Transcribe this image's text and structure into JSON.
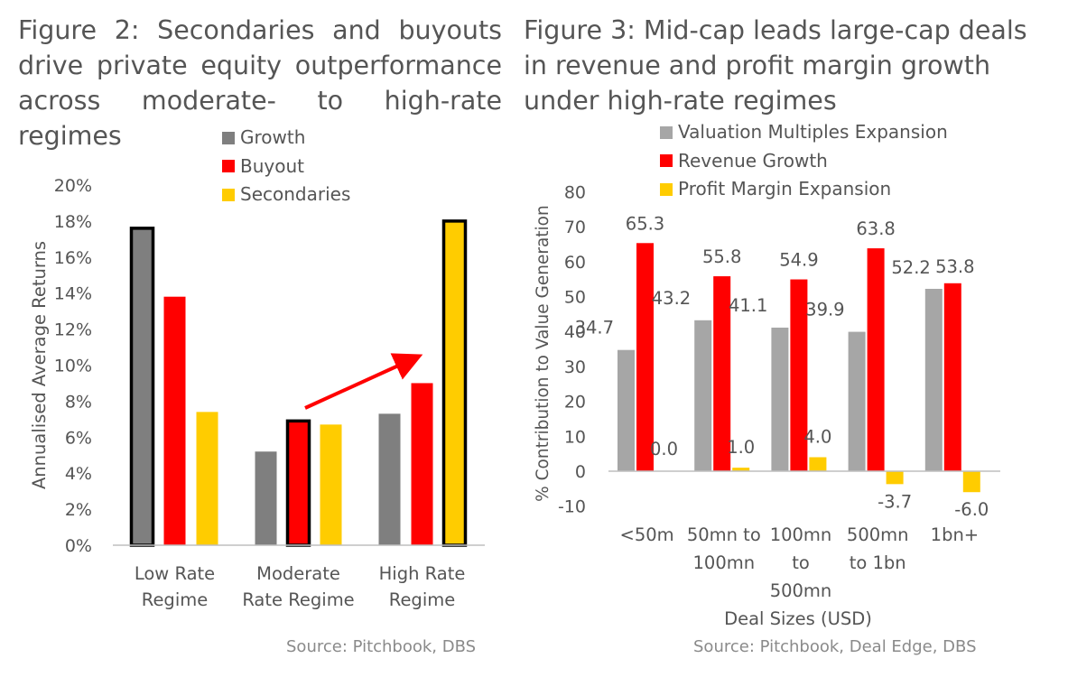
{
  "figures": {
    "fig2_title": "Figure 2: Secondaries and buyouts drive private equity outperformance across moderate- to high-rate regimes",
    "fig3_title": "Figure 3: Mid-cap leads large-cap deals in revenue and profit margin growth under high-rate regimes",
    "fig2_source": "Source: Pitchbook, DBS",
    "fig3_source": "Source: Pitchbook, Deal Edge, DBS"
  },
  "chart_data": [
    {
      "type": "bar",
      "title": "Figure 2: Secondaries and buyouts drive private equity outperformance across moderate- to high-rate regimes",
      "categories": [
        [
          "Low Rate",
          "Regime"
        ],
        [
          "Moderate",
          "Rate Regime"
        ],
        [
          "High Rate",
          "Regime"
        ]
      ],
      "series": [
        {
          "name": "Growth",
          "color": "#7f7f7f",
          "values": [
            17.6,
            5.2,
            7.3
          ],
          "highlight": [
            true,
            false,
            false
          ]
        },
        {
          "name": "Buyout",
          "color": "#ff0000",
          "values": [
            13.8,
            6.9,
            9.0
          ],
          "highlight": [
            false,
            true,
            false
          ]
        },
        {
          "name": "Secondaries",
          "color": "#ffcc00",
          "values": [
            7.4,
            6.7,
            18.0
          ],
          "highlight": [
            false,
            false,
            true
          ]
        }
      ],
      "ylabel": "Annualised Average Returns",
      "xlabel": "",
      "ylim": [
        0,
        20
      ],
      "yticks": [
        "0%",
        "2%",
        "4%",
        "6%",
        "8%",
        "10%",
        "12%",
        "14%",
        "16%",
        "18%",
        "20%"
      ],
      "legend": "top-right",
      "annotation": "arrow from Moderate Rate Regime buyout toward High Rate Regime secondaries"
    },
    {
      "type": "bar",
      "title": "Figure 3: Mid-cap leads large-cap deals in revenue and profit margin growth under high-rate regimes",
      "categories": [
        [
          "<50m"
        ],
        [
          "50mn to",
          "100mn"
        ],
        [
          "100mn",
          "to",
          "500mn"
        ],
        [
          "500mn",
          "to 1bn"
        ],
        [
          "1bn+"
        ]
      ],
      "series": [
        {
          "name": "Valuation Multiples Expansion",
          "color": "#a6a6a6",
          "values": [
            34.7,
            43.2,
            41.1,
            39.9,
            52.2
          ],
          "labels": [
            "34.7",
            "43.2",
            "41.1",
            "39.9",
            "52.2"
          ]
        },
        {
          "name": "Revenue Growth",
          "color": "#ff0000",
          "values": [
            65.3,
            55.8,
            54.9,
            63.8,
            53.8
          ],
          "labels": [
            "65.3",
            "55.8",
            "54.9",
            "63.8",
            "53.8"
          ]
        },
        {
          "name": "Profit Margin Expansion",
          "color": "#ffcc00",
          "values": [
            0.0,
            1.0,
            4.0,
            -3.7,
            -6.0
          ],
          "labels": [
            "0.0",
            "1.0",
            "4.0",
            "-3.7",
            "-6.0"
          ]
        }
      ],
      "ylabel": "% Contribution to Value Generation",
      "xlabel": "Deal Sizes (USD)",
      "ylim": [
        -10,
        80
      ],
      "yticks": [
        "-10",
        "0",
        "10",
        "20",
        "30",
        "40",
        "50",
        "60",
        "70",
        "80"
      ],
      "legend": "top"
    }
  ]
}
